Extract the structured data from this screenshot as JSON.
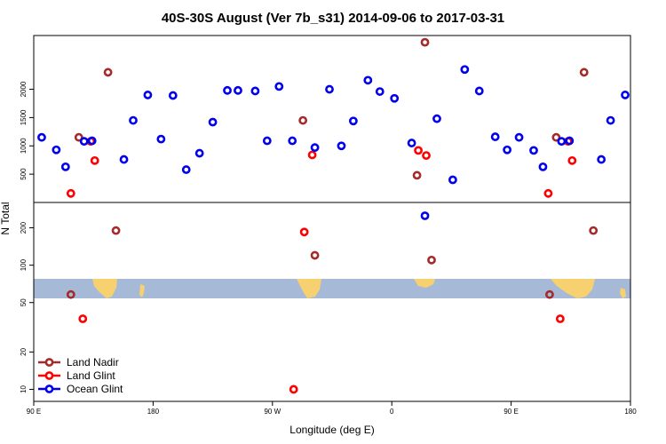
{
  "chart_data": {
    "type": "scatter",
    "title": "40S-30S August (Ver 7b_s31)   2014-09-06 to 2017-03-31",
    "xlabel": "Longitude (deg E)",
    "ylabel": "N Total",
    "xlim": [
      90,
      540
    ],
    "x_ticks": [
      {
        "value": 90,
        "label": "90 E"
      },
      {
        "value": 180,
        "label": "180"
      },
      {
        "value": 270,
        "label": "90 W"
      },
      {
        "value": 360,
        "label": "0"
      },
      {
        "value": 450,
        "label": "90 E"
      },
      {
        "value": 540,
        "label": "180"
      }
    ],
    "upper_panel": {
      "scale": "linear",
      "ylim": [
        0,
        2950
      ],
      "y_ticks": [
        {
          "value": 500,
          "label": "500"
        },
        {
          "value": 1000,
          "label": "1000"
        },
        {
          "value": 1500,
          "label": "1500"
        },
        {
          "value": 2000,
          "label": "2000"
        }
      ]
    },
    "lower_panel": {
      "scale": "log",
      "ylim": [
        8,
        320
      ],
      "y_ticks": [
        {
          "value": 10,
          "label": "10"
        },
        {
          "value": 20,
          "label": "20"
        },
        {
          "value": 50,
          "label": "50"
        },
        {
          "value": 100,
          "label": "100"
        },
        {
          "value": 200,
          "label": "200"
        }
      ]
    },
    "legend_position": "bottom-left",
    "series": [
      {
        "name": "Land Nadir",
        "color": "#a52a2a",
        "points": [
          {
            "x": 124,
            "y": 1150,
            "panel": "upper"
          },
          {
            "x": 146,
            "y": 2300,
            "panel": "upper"
          },
          {
            "x": 152,
            "y": 190,
            "panel": "lower"
          },
          {
            "x": 118,
            "y": 58,
            "panel": "lower"
          },
          {
            "x": 293,
            "y": 1450,
            "panel": "upper"
          },
          {
            "x": 302,
            "y": 120,
            "panel": "lower"
          },
          {
            "x": 379,
            "y": 480,
            "panel": "upper"
          },
          {
            "x": 385,
            "y": 2830,
            "panel": "upper"
          },
          {
            "x": 390,
            "y": 110,
            "panel": "lower"
          },
          {
            "x": 479,
            "y": 58,
            "panel": "lower"
          },
          {
            "x": 484,
            "y": 1150,
            "panel": "upper"
          },
          {
            "x": 505,
            "y": 2300,
            "panel": "upper"
          },
          {
            "x": 512,
            "y": 190,
            "panel": "lower"
          }
        ]
      },
      {
        "name": "Land Glint",
        "color": "#ff0000",
        "points": [
          {
            "x": 118,
            "y": 160,
            "panel": "upper"
          },
          {
            "x": 127,
            "y": 37,
            "panel": "lower"
          },
          {
            "x": 133,
            "y": 1080,
            "panel": "upper"
          },
          {
            "x": 136,
            "y": 740,
            "panel": "upper"
          },
          {
            "x": 286,
            "y": 10,
            "panel": "lower"
          },
          {
            "x": 294,
            "y": 185,
            "panel": "lower"
          },
          {
            "x": 300,
            "y": 840,
            "panel": "upper"
          },
          {
            "x": 380,
            "y": 920,
            "panel": "upper"
          },
          {
            "x": 386,
            "y": 830,
            "panel": "upper"
          },
          {
            "x": 478,
            "y": 160,
            "panel": "upper"
          },
          {
            "x": 487,
            "y": 37,
            "panel": "lower"
          },
          {
            "x": 493,
            "y": 1080,
            "panel": "upper"
          },
          {
            "x": 496,
            "y": 740,
            "panel": "upper"
          }
        ]
      },
      {
        "name": "Ocean Glint",
        "color": "#0000ee",
        "points": [
          {
            "x": 96,
            "y": 1150,
            "panel": "upper"
          },
          {
            "x": 107,
            "y": 930,
            "panel": "upper"
          },
          {
            "x": 114,
            "y": 630,
            "panel": "upper"
          },
          {
            "x": 128,
            "y": 1080,
            "panel": "upper"
          },
          {
            "x": 134,
            "y": 1090,
            "panel": "upper"
          },
          {
            "x": 158,
            "y": 760,
            "panel": "upper"
          },
          {
            "x": 165,
            "y": 1450,
            "panel": "upper"
          },
          {
            "x": 176,
            "y": 1900,
            "panel": "upper"
          },
          {
            "x": 186,
            "y": 1120,
            "panel": "upper"
          },
          {
            "x": 195,
            "y": 1890,
            "panel": "upper"
          },
          {
            "x": 205,
            "y": 580,
            "panel": "upper"
          },
          {
            "x": 215,
            "y": 870,
            "panel": "upper"
          },
          {
            "x": 225,
            "y": 1420,
            "panel": "upper"
          },
          {
            "x": 236,
            "y": 1980,
            "panel": "upper"
          },
          {
            "x": 244,
            "y": 1980,
            "panel": "upper"
          },
          {
            "x": 257,
            "y": 1970,
            "panel": "upper"
          },
          {
            "x": 266,
            "y": 1090,
            "panel": "upper"
          },
          {
            "x": 275,
            "y": 2050,
            "panel": "upper"
          },
          {
            "x": 285,
            "y": 1090,
            "panel": "upper"
          },
          {
            "x": 302,
            "y": 970,
            "panel": "upper"
          },
          {
            "x": 313,
            "y": 2000,
            "panel": "upper"
          },
          {
            "x": 322,
            "y": 1000,
            "panel": "upper"
          },
          {
            "x": 331,
            "y": 1440,
            "panel": "upper"
          },
          {
            "x": 342,
            "y": 2160,
            "panel": "upper"
          },
          {
            "x": 351,
            "y": 1960,
            "panel": "upper"
          },
          {
            "x": 362,
            "y": 1840,
            "panel": "upper"
          },
          {
            "x": 375,
            "y": 1050,
            "panel": "upper"
          },
          {
            "x": 385,
            "y": 250,
            "panel": "lower"
          },
          {
            "x": 394,
            "y": 1480,
            "panel": "upper"
          },
          {
            "x": 406,
            "y": 400,
            "panel": "upper"
          },
          {
            "x": 415,
            "y": 2350,
            "panel": "upper"
          },
          {
            "x": 426,
            "y": 1970,
            "panel": "upper"
          },
          {
            "x": 438,
            "y": 1160,
            "panel": "upper"
          },
          {
            "x": 447,
            "y": 930,
            "panel": "upper"
          },
          {
            "x": 456,
            "y": 1150,
            "panel": "upper"
          },
          {
            "x": 467,
            "y": 920,
            "panel": "upper"
          },
          {
            "x": 474,
            "y": 630,
            "panel": "upper"
          },
          {
            "x": 488,
            "y": 1080,
            "panel": "upper"
          },
          {
            "x": 494,
            "y": 1090,
            "panel": "upper"
          },
          {
            "x": 518,
            "y": 760,
            "panel": "upper"
          },
          {
            "x": 525,
            "y": 1450,
            "panel": "upper"
          },
          {
            "x": 536,
            "y": 1900,
            "panel": "upper"
          }
        ]
      }
    ]
  }
}
